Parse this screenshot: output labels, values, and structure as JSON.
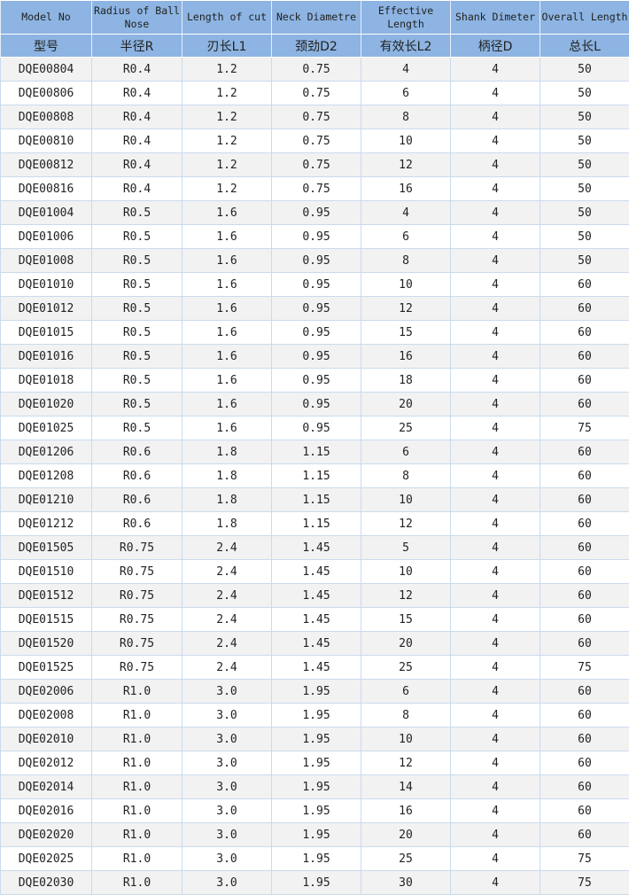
{
  "headers_en": [
    "Model No",
    "Radius of Ball Nose",
    "Length of cut",
    "Neck Diametre",
    "Effective Length",
    "Shank Dimeter",
    "Overall Length"
  ],
  "headers_cn": [
    "型号",
    "半径R",
    "刃长L1",
    "颈劲D2",
    "有效长L2",
    "柄径D",
    "总长L"
  ],
  "rows": [
    [
      "DQE00804",
      "R0.4",
      "1.2",
      "0.75",
      "4",
      "4",
      "50"
    ],
    [
      "DQE00806",
      "R0.4",
      "1.2",
      "0.75",
      "6",
      "4",
      "50"
    ],
    [
      "DQE00808",
      "R0.4",
      "1.2",
      "0.75",
      "8",
      "4",
      "50"
    ],
    [
      "DQE00810",
      "R0.4",
      "1.2",
      "0.75",
      "10",
      "4",
      "50"
    ],
    [
      "DQE00812",
      "R0.4",
      "1.2",
      "0.75",
      "12",
      "4",
      "50"
    ],
    [
      "DQE00816",
      "R0.4",
      "1.2",
      "0.75",
      "16",
      "4",
      "50"
    ],
    [
      "DQE01004",
      "R0.5",
      "1.6",
      "0.95",
      "4",
      "4",
      "50"
    ],
    [
      "DQE01006",
      "R0.5",
      "1.6",
      "0.95",
      "6",
      "4",
      "50"
    ],
    [
      "DQE01008",
      "R0.5",
      "1.6",
      "0.95",
      "8",
      "4",
      "50"
    ],
    [
      "DQE01010",
      "R0.5",
      "1.6",
      "0.95",
      "10",
      "4",
      "60"
    ],
    [
      "DQE01012",
      "R0.5",
      "1.6",
      "0.95",
      "12",
      "4",
      "60"
    ],
    [
      "DQE01015",
      "R0.5",
      "1.6",
      "0.95",
      "15",
      "4",
      "60"
    ],
    [
      "DQE01016",
      "R0.5",
      "1.6",
      "0.95",
      "16",
      "4",
      "60"
    ],
    [
      "DQE01018",
      "R0.5",
      "1.6",
      "0.95",
      "18",
      "4",
      "60"
    ],
    [
      "DQE01020",
      "R0.5",
      "1.6",
      "0.95",
      "20",
      "4",
      "60"
    ],
    [
      "DQE01025",
      "R0.5",
      "1.6",
      "0.95",
      "25",
      "4",
      "75"
    ],
    [
      "DQE01206",
      "R0.6",
      "1.8",
      "1.15",
      "6",
      "4",
      "60"
    ],
    [
      "DQE01208",
      "R0.6",
      "1.8",
      "1.15",
      "8",
      "4",
      "60"
    ],
    [
      "DQE01210",
      "R0.6",
      "1.8",
      "1.15",
      "10",
      "4",
      "60"
    ],
    [
      "DQE01212",
      "R0.6",
      "1.8",
      "1.15",
      "12",
      "4",
      "60"
    ],
    [
      "DQE01505",
      "R0.75",
      "2.4",
      "1.45",
      "5",
      "4",
      "60"
    ],
    [
      "DQE01510",
      "R0.75",
      "2.4",
      "1.45",
      "10",
      "4",
      "60"
    ],
    [
      "DQE01512",
      "R0.75",
      "2.4",
      "1.45",
      "12",
      "4",
      "60"
    ],
    [
      "DQE01515",
      "R0.75",
      "2.4",
      "1.45",
      "15",
      "4",
      "60"
    ],
    [
      "DQE01520",
      "R0.75",
      "2.4",
      "1.45",
      "20",
      "4",
      "60"
    ],
    [
      "DQE01525",
      "R0.75",
      "2.4",
      "1.45",
      "25",
      "4",
      "75"
    ],
    [
      "DQE02006",
      "R1.0",
      "3.0",
      "1.95",
      "6",
      "4",
      "60"
    ],
    [
      "DQE02008",
      "R1.0",
      "3.0",
      "1.95",
      "8",
      "4",
      "60"
    ],
    [
      "DQE02010",
      "R1.0",
      "3.0",
      "1.95",
      "10",
      "4",
      "60"
    ],
    [
      "DQE02012",
      "R1.0",
      "3.0",
      "1.95",
      "12",
      "4",
      "60"
    ],
    [
      "DQE02014",
      "R1.0",
      "3.0",
      "1.95",
      "14",
      "4",
      "60"
    ],
    [
      "DQE02016",
      "R1.0",
      "3.0",
      "1.95",
      "16",
      "4",
      "60"
    ],
    [
      "DQE02020",
      "R1.0",
      "3.0",
      "1.95",
      "20",
      "4",
      "60"
    ],
    [
      "DQE02025",
      "R1.0",
      "3.0",
      "1.95",
      "25",
      "4",
      "75"
    ],
    [
      "DQE02030",
      "R1.0",
      "3.0",
      "1.95",
      "30",
      "4",
      "75"
    ]
  ],
  "colors": {
    "header_bg": "#8db4e2",
    "row_alt": "#f2f2f2",
    "grid": "#c9dbee"
  }
}
